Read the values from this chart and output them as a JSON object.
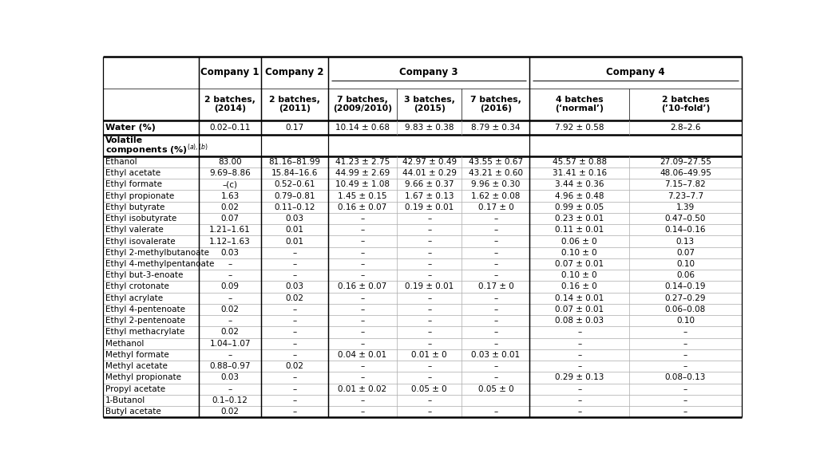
{
  "col_headers_row1": [
    "",
    "Company 1",
    "Company 2",
    "Company 3",
    "Company 4"
  ],
  "col_headers_row2": [
    "",
    "2 batches,\n(2014)",
    "2 batches,\n(2011)",
    "7 batches,\n(2009/2010)",
    "3 batches,\n(2015)",
    "7 batches,\n(2016)",
    "4 batches\n(‘normal’)",
    "2 batches\n(’10-fold’)"
  ],
  "rows": [
    [
      "Water (%)",
      "0.02–0.11",
      "0.17",
      "10.14 ± 0.68",
      "9.83 ± 0.38",
      "8.79 ± 0.34",
      "7.92 ± 0.58",
      "2.8–2.6"
    ],
    [
      "Volatile\ncomponents (%)(a),(b)",
      "",
      "",
      "",
      "",
      "",
      "",
      ""
    ],
    [
      "Ethanol",
      "83.00",
      "81.16–81.99",
      "41.23 ± 2.75",
      "42.97 ± 0.49",
      "43.55 ± 0.67",
      "45.57 ± 0.88",
      "27.09–27.55"
    ],
    [
      "Ethyl acetate",
      "9.69–8.86",
      "15.84–16.6",
      "44.99 ± 2.69",
      "44.01 ± 0.29",
      "43.21 ± 0.60",
      "31.41 ± 0.16",
      "48.06–49.95"
    ],
    [
      "Ethyl formate",
      "–(c)",
      "0.52–0.61",
      "10.49 ± 1.08",
      "9.66 ± 0.37",
      "9.96 ± 0.30",
      "3.44 ± 0.36",
      "7.15–7.82"
    ],
    [
      "Ethyl propionate",
      "1.63",
      "0.79–0.81",
      "1.45 ± 0.15",
      "1.67 ± 0.13",
      "1.62 ± 0.08",
      "4.96 ± 0.48",
      "7.23–7.7"
    ],
    [
      "Ethyl butyrate",
      "0.02",
      "0.11–0.12",
      "0.16 ± 0.07",
      "0.19 ± 0.01",
      "0.17 ± 0",
      "0.99 ± 0.05",
      "1.39"
    ],
    [
      "Ethyl isobutyrate",
      "0.07",
      "0.03",
      "–",
      "–",
      "–",
      "0.23 ± 0.01",
      "0.47–0.50"
    ],
    [
      "Ethyl valerate",
      "1.21–1.61",
      "0.01",
      "–",
      "–",
      "–",
      "0.11 ± 0.01",
      "0.14–0.16"
    ],
    [
      "Ethyl isovalerate",
      "1.12–1.63",
      "0.01",
      "–",
      "–",
      "–",
      "0.06 ± 0",
      "0.13"
    ],
    [
      "Ethyl 2-methylbutanoate",
      "0.03",
      "–",
      "–",
      "–",
      "–",
      "0.10 ± 0",
      "0.07"
    ],
    [
      "Ethyl 4-methylpentanoate",
      "–",
      "–",
      "–",
      "–",
      "–",
      "0.07 ± 0.01",
      "0.10"
    ],
    [
      "Ethyl but-3-enoate",
      "–",
      "–",
      "–",
      "–",
      "–",
      "0.10 ± 0",
      "0.06"
    ],
    [
      "Ethyl crotonate",
      "0.09",
      "0.03",
      "0.16 ± 0.07",
      "0.19 ± 0.01",
      "0.17 ± 0",
      "0.16 ± 0",
      "0.14–0.19"
    ],
    [
      "Ethyl acrylate",
      "–",
      "0.02",
      "–",
      "–",
      "–",
      "0.14 ± 0.01",
      "0.27–0.29"
    ],
    [
      "Ethyl 4-pentenoate",
      "0.02",
      "–",
      "–",
      "–",
      "–",
      "0.07 ± 0.01",
      "0.06–0.08"
    ],
    [
      "Ethyl 2-pentenoate",
      "–",
      "–",
      "–",
      "–",
      "–",
      "0.08 ± 0.03",
      "0.10"
    ],
    [
      "Ethyl methacrylate",
      "0.02",
      "–",
      "–",
      "–",
      "–",
      "–",
      "–"
    ],
    [
      "Methanol",
      "1.04–1.07",
      "–",
      "–",
      "–",
      "–",
      "–",
      "–"
    ],
    [
      "Methyl formate",
      "–",
      "–",
      "0.04 ± 0.01",
      "0.01 ± 0",
      "0.03 ± 0.01",
      "–",
      "–"
    ],
    [
      "Methyl acetate",
      "0.88–0.97",
      "0.02",
      "–",
      "–",
      "–",
      "–",
      "–"
    ],
    [
      "Methyl propionate",
      "0.03",
      "–",
      "–",
      "–",
      "–",
      "0.29 ± 0.13",
      "0.08–0.13"
    ],
    [
      "Propyl acetate",
      "–",
      "–",
      "0.01 ± 0.02",
      "0.05 ± 0",
      "0.05 ± 0",
      "–",
      "–"
    ],
    [
      "1-Butanol",
      "0.1–0.12",
      "–",
      "–",
      "–",
      "",
      "–",
      "–"
    ],
    [
      "Butyl acetate",
      "0.02",
      "–",
      "–",
      "–",
      "–",
      "–",
      "–"
    ]
  ],
  "bg_color": "#ffffff",
  "thick_lw": 1.8,
  "thin_lw": 0.5,
  "mid_lw": 0.9
}
